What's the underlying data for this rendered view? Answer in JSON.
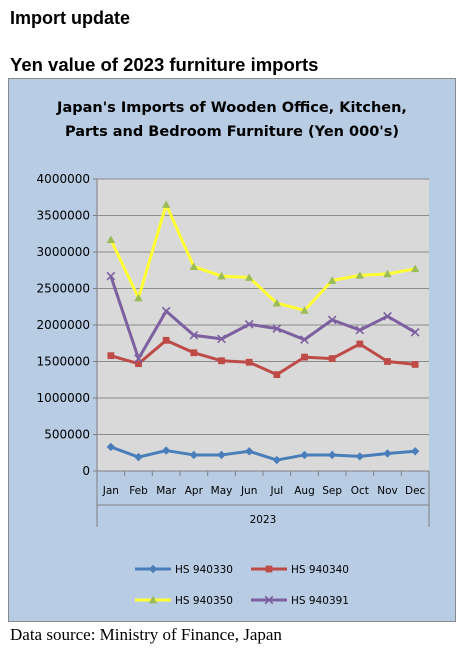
{
  "page": {
    "heading": "Import update",
    "subheading": "Yen value of 2023 furniture imports",
    "source": "Data source: Ministry of Finance, Japan"
  },
  "chart_data": {
    "type": "line",
    "title_lines": [
      "Japan's Imports of  Wooden  Office, Kitchen,",
      "Parts and Bedroom Furniture (Yen 000's)"
    ],
    "categories": [
      "Jan",
      "Feb",
      "Mar",
      "Apr",
      "May",
      "Jun",
      "Jul",
      "Aug",
      "Sep",
      "Oct",
      "Nov",
      "Dec"
    ],
    "xlabel": "2023",
    "ylabel": "",
    "ylim": [
      0,
      4000000
    ],
    "yticks": [
      "0",
      "500000",
      "1000000",
      "1500000",
      "2000000",
      "2500000",
      "3000000",
      "3500000",
      "4000000"
    ],
    "grid": true,
    "legend_position": "bottom",
    "series": [
      {
        "name": "HS 940330",
        "color": "#4a7ebb",
        "marker": "diamond",
        "values": [
          330000,
          190000,
          280000,
          220000,
          220000,
          270000,
          150000,
          220000,
          220000,
          200000,
          240000,
          270000
        ]
      },
      {
        "name": "HS 940340",
        "color": "#be4b48",
        "marker": "square",
        "values": [
          1580000,
          1470000,
          1790000,
          1620000,
          1510000,
          1490000,
          1320000,
          1560000,
          1540000,
          1740000,
          1500000,
          1460000
        ]
      },
      {
        "name": "HS 940350",
        "color": "#ffff33",
        "marker": "triangle",
        "values": [
          3170000,
          2370000,
          3650000,
          2800000,
          2670000,
          2650000,
          2300000,
          2200000,
          2610000,
          2680000,
          2700000,
          2770000
        ]
      },
      {
        "name": "HS 940391",
        "color": "#7d60a0",
        "marker": "x",
        "values": [
          2670000,
          1540000,
          2190000,
          1860000,
          1810000,
          2010000,
          1950000,
          1800000,
          2070000,
          1930000,
          2120000,
          1900000
        ]
      }
    ]
  }
}
